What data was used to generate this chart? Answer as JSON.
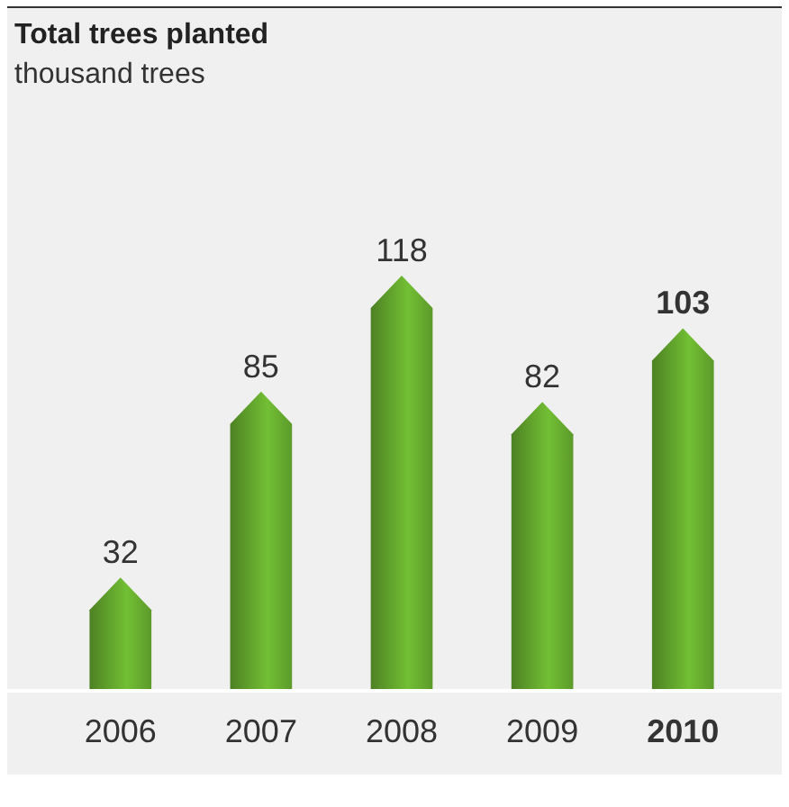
{
  "chart_data": {
    "type": "bar",
    "title": "Total trees planted",
    "subtitle": "thousand trees",
    "categories": [
      "2006",
      "2007",
      "2008",
      "2009",
      "2010"
    ],
    "values": [
      32,
      85,
      118,
      82,
      103
    ],
    "color": "#5c9a2a",
    "value_labels": [
      "32",
      "85",
      "118",
      "82",
      "103"
    ]
  }
}
